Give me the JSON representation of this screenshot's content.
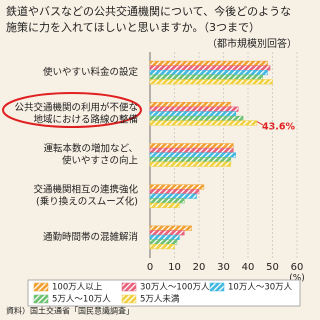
{
  "chart_data": {
    "type": "bar",
    "orientation": "horizontal",
    "title": [
      "鉄道やバスなどの公共交通機関について、今後どのような",
      "施策に力を入れてほしいと思いますか。（3つまで）"
    ],
    "subtitle": "（都市規模別回答）",
    "categories": [
      [
        "使いやすい料金の設定"
      ],
      [
        "公共交通機関の利用が不便な",
        "地域における路線の整備"
      ],
      [
        "運転本数の増加など、",
        "使いやすさの向上"
      ],
      [
        "交通機関相互の連携強化",
        "(乗り換えのスムーズ化)"
      ],
      [
        "通勤時間帯の混雑解消"
      ]
    ],
    "series": [
      {
        "name": "100万人以上",
        "color": "#f0a030",
        "values": [
          48,
          33,
          34,
          22,
          17
        ]
      },
      {
        "name": "30万人～100万人",
        "color": "#e8607a",
        "values": [
          49,
          36,
          34,
          20,
          14
        ]
      },
      {
        "name": "10万人～30万人",
        "color": "#40b8e0",
        "values": [
          48,
          35,
          35,
          19,
          12
        ]
      },
      {
        "name": "5万人～10万人",
        "color": "#6cc070",
        "values": [
          46,
          38,
          33,
          14,
          11
        ]
      },
      {
        "name": "5万人未満",
        "color": "#f0d040",
        "values": [
          50,
          43.6,
          33,
          12,
          10
        ]
      }
    ],
    "annotation": "43.6%",
    "xlim": [
      0,
      60
    ],
    "xticks": [
      0,
      10,
      20,
      30,
      40,
      50,
      60
    ],
    "x_label": "(%)",
    "grid": true,
    "source": "資料）国土交通省「国民意識調査」"
  }
}
